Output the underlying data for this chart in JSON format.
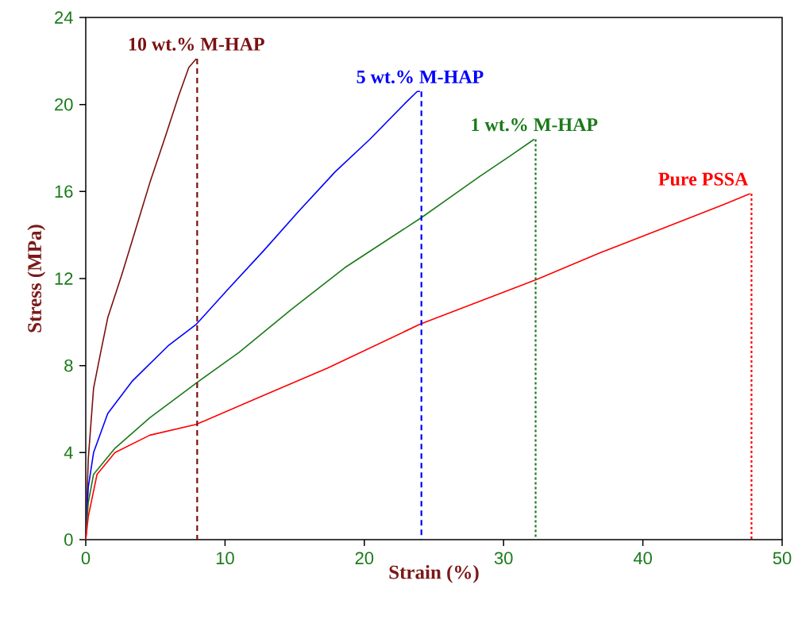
{
  "chart_data": {
    "type": "line",
    "xlabel": "Strain (%)",
    "ylabel": "Stress (MPa)",
    "xlim": [
      0,
      50
    ],
    "ylim": [
      0,
      24
    ],
    "xticks": [
      0,
      10,
      20,
      30,
      40,
      50
    ],
    "yticks": [
      0,
      4,
      8,
      12,
      16,
      20,
      24
    ],
    "marker": "none",
    "line_style": "solid",
    "series": [
      {
        "name": "10 wt.% M-HAP",
        "color": "#7b1010",
        "x": [
          0,
          0.18,
          0.56,
          1.07,
          1.58,
          2.6,
          3.6,
          4.6,
          5.65,
          6.67,
          7.4,
          7.94
        ],
        "values": [
          0,
          3.7,
          6.95,
          8.6,
          10.2,
          12.2,
          14.3,
          16.4,
          18.4,
          20.4,
          21.7,
          22.1
        ]
      },
      {
        "name": "5 wt.% M-HAP",
        "color": "#0000ff",
        "x": [
          0,
          0.18,
          0.56,
          1.58,
          3.36,
          5.9,
          7.94,
          10.2,
          12.8,
          15.3,
          17.9,
          20.4,
          23.0,
          23.8,
          24.0
        ],
        "values": [
          0,
          2.4,
          4.0,
          5.8,
          7.3,
          8.9,
          9.9,
          11.5,
          13.3,
          15.1,
          16.9,
          18.4,
          20.1,
          20.6,
          20.6
        ]
      },
      {
        "name": "1 wt.% M-HAP",
        "color": "#1a7a1a",
        "x": [
          0,
          0.18,
          0.56,
          2.1,
          4.6,
          7.94,
          11.0,
          14.8,
          18.6,
          24.1,
          28.3,
          30.5,
          32.2
        ],
        "values": [
          0,
          1.7,
          3.0,
          4.2,
          5.6,
          7.2,
          8.6,
          10.6,
          12.5,
          14.8,
          16.7,
          17.65,
          18.4
        ]
      },
      {
        "name": "Pure PSSA",
        "color": "#ff0000",
        "x": [
          0,
          0.18,
          0.81,
          2.1,
          4.6,
          7.94,
          12.3,
          17.4,
          24.0,
          32.4,
          37.0,
          41.4,
          45.8,
          47.7
        ],
        "values": [
          0,
          1.06,
          3.0,
          4.0,
          4.8,
          5.3,
          6.5,
          7.9,
          9.9,
          11.96,
          13.2,
          14.3,
          15.4,
          15.9
        ]
      },
      {
        "type": "line",
        "line_style": "dashed",
        "color": "#7b1010",
        "x": [
          8.0,
          8.0
        ],
        "values": [
          22.1,
          0
        ]
      },
      {
        "type": "line",
        "line_style": "dashed",
        "color": "#0000ff",
        "x": [
          24.1,
          24.1
        ],
        "values": [
          20.6,
          0
        ]
      },
      {
        "type": "line",
        "line_style": "dotted",
        "color": "#1a7a1a",
        "x": [
          32.3,
          32.3
        ],
        "values": [
          18.4,
          0
        ]
      },
      {
        "type": "line",
        "line_style": "dotted",
        "color": "#ff0000",
        "x": [
          47.8,
          47.8
        ],
        "values": [
          15.9,
          0
        ]
      }
    ]
  }
}
